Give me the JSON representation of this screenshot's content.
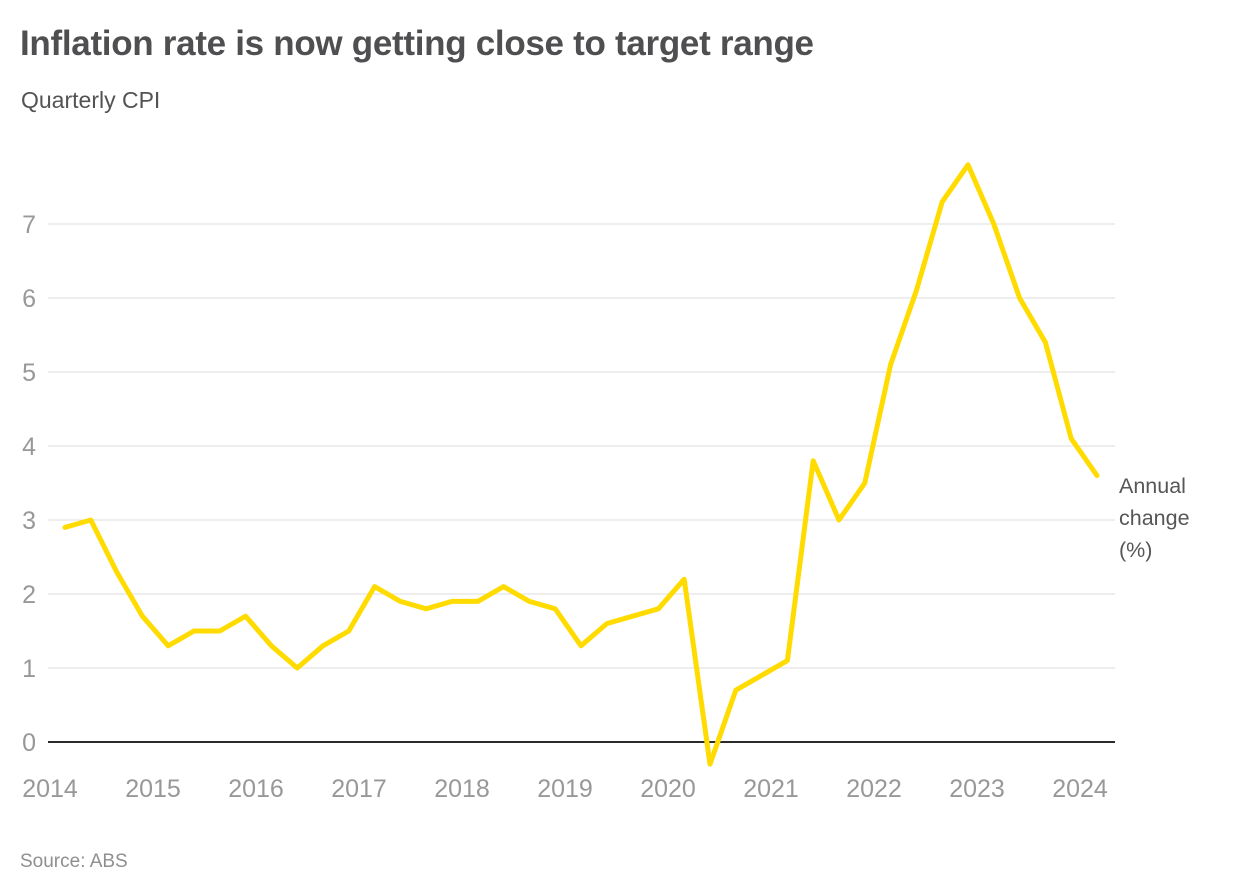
{
  "header": {
    "title": "Inflation rate is now getting close to target range",
    "subtitle": "Quarterly CPI"
  },
  "footer": {
    "source": "Source: ABS"
  },
  "chart_data": {
    "type": "line",
    "title": "Inflation rate is now getting close to target range",
    "subtitle": "Quarterly CPI",
    "ylabel": "Annual change (%)",
    "source": "Source: ABS",
    "x_tick_labels": [
      "2014",
      "2015",
      "2016",
      "2017",
      "2018",
      "2019",
      "2020",
      "2021",
      "2022",
      "2023",
      "2024"
    ],
    "y_ticks": [
      0,
      1,
      2,
      3,
      4,
      5,
      6,
      7
    ],
    "ylim": [
      -0.5,
      8
    ],
    "grid": "horizontal-only",
    "legend_position": "none",
    "frequency": "quarterly",
    "x_start": "2014 Q1",
    "x_end": "2024 Q1",
    "series": [
      {
        "name": "Quarterly CPI annual change (%)",
        "values": [
          2.9,
          3.0,
          2.3,
          1.7,
          1.3,
          1.5,
          1.5,
          1.7,
          1.3,
          1.0,
          1.3,
          1.5,
          2.1,
          1.9,
          1.8,
          1.9,
          1.9,
          2.1,
          1.9,
          1.8,
          1.3,
          1.6,
          1.7,
          1.8,
          2.2,
          -0.3,
          0.7,
          0.9,
          1.1,
          3.8,
          3.0,
          3.5,
          5.1,
          6.1,
          7.3,
          7.8,
          7.0,
          6.0,
          5.4,
          4.1,
          3.6
        ]
      }
    ],
    "colors": {
      "line": "#FFDB00",
      "zero_axis": "#2B2B2B",
      "gridline": "#E4E4E4",
      "tick_text": "#989898"
    }
  }
}
